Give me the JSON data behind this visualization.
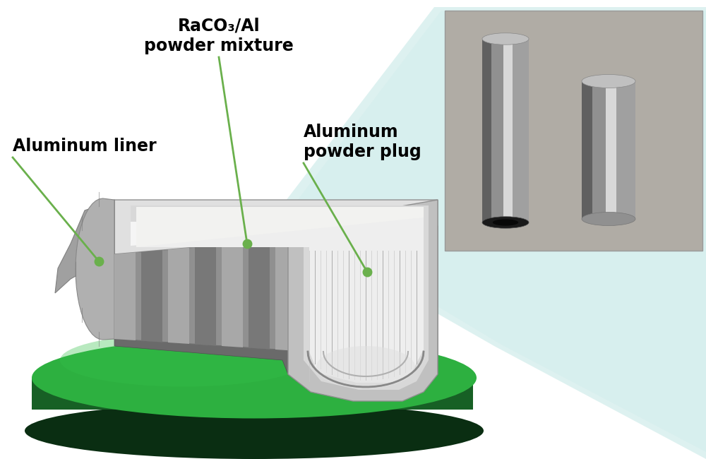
{
  "bg_color": "#ffffff",
  "label_color": "#000000",
  "arrow_color": "#6ab04c",
  "dot_color": "#6ab04c",
  "label_raco3_1": "RaCO₃/Al",
  "label_raco3_2": "powder mixture",
  "label_liner": "Aluminum liner",
  "label_plug_1": "Aluminum",
  "label_plug_2": "powder plug",
  "label_fontsize": 17,
  "metal_top": "#d4d4d4",
  "metal_side": "#a0a0a0",
  "metal_dark": "#787878",
  "metal_darker": "#505050",
  "metal_stripe_light": "#c8c8c8",
  "metal_stripe_dark": "#686868",
  "powder_fill": "#e8e8e8",
  "powder_highlight": "#f5f5f5",
  "platform_green_top": "#2db040",
  "platform_green_side": "#176025",
  "platform_shadow": "#0a2e12",
  "teal_beam": "#a0d8d4",
  "photo_bg": "#b0aca5"
}
